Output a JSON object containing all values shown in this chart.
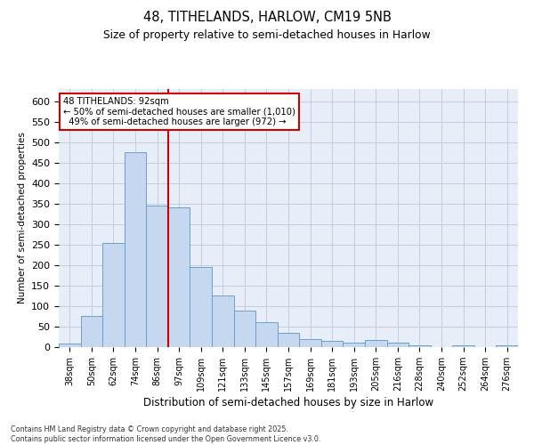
{
  "title1": "48, TITHELANDS, HARLOW, CM19 5NB",
  "title2": "Size of property relative to semi-detached houses in Harlow",
  "xlabel": "Distribution of semi-detached houses by size in Harlow",
  "ylabel": "Number of semi-detached properties",
  "footnote": "Contains HM Land Registry data © Crown copyright and database right 2025.\nContains public sector information licensed under the Open Government Licence v3.0.",
  "bin_labels": [
    "38sqm",
    "50sqm",
    "62sqm",
    "74sqm",
    "86sqm",
    "97sqm",
    "109sqm",
    "121sqm",
    "133sqm",
    "145sqm",
    "157sqm",
    "169sqm",
    "181sqm",
    "193sqm",
    "205sqm",
    "216sqm",
    "228sqm",
    "240sqm",
    "252sqm",
    "264sqm",
    "276sqm"
  ],
  "bar_values": [
    8,
    75,
    255,
    475,
    345,
    340,
    195,
    125,
    90,
    60,
    35,
    20,
    15,
    10,
    17,
    10,
    5,
    0,
    4,
    0,
    4
  ],
  "bar_color": "#c5d8f0",
  "bar_edge_color": "#6aa0cc",
  "vline_pos": 4.5,
  "vline_color": "#cc0000",
  "annotation_text": "48 TITHELANDS: 92sqm\n← 50% of semi-detached houses are smaller (1,010)\n  49% of semi-detached houses are larger (972) →",
  "annotation_box_color": "#cc0000",
  "ylim": [
    0,
    630
  ],
  "yticks": [
    0,
    50,
    100,
    150,
    200,
    250,
    300,
    350,
    400,
    450,
    500,
    550,
    600
  ],
  "grid_color": "#c0c8d8",
  "bg_color": "#e8eef8"
}
